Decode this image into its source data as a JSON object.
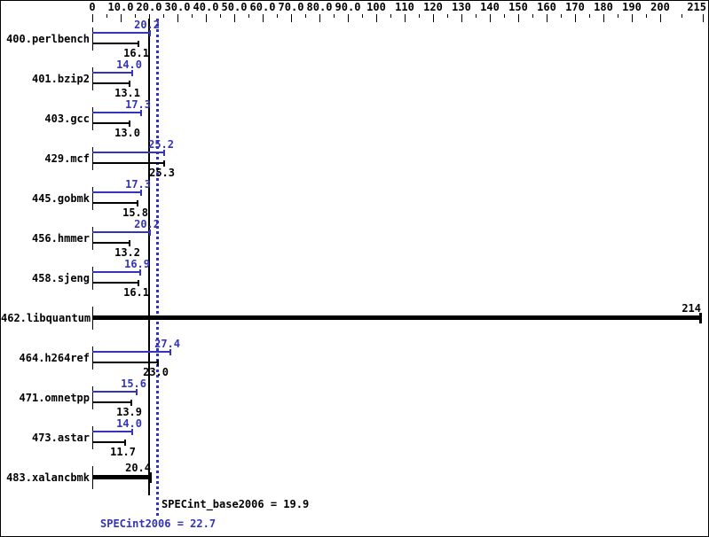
{
  "colors": {
    "peak_blue": "#3333bb",
    "base_black": "#000000",
    "background": "#ffffff"
  },
  "axis": {
    "labels": [
      {
        "value": 0,
        "text": "0"
      },
      {
        "value": 10,
        "text": "10.0"
      },
      {
        "value": 20,
        "text": "20.0"
      },
      {
        "value": 30,
        "text": "30.0"
      },
      {
        "value": 40,
        "text": "40.0"
      },
      {
        "value": 50,
        "text": "50.0"
      },
      {
        "value": 60,
        "text": "60.0"
      },
      {
        "value": 70,
        "text": "70.0"
      },
      {
        "value": 80,
        "text": "80.0"
      },
      {
        "value": 90,
        "text": "90.0"
      },
      {
        "value": 100,
        "text": "100"
      },
      {
        "value": 110,
        "text": "110"
      },
      {
        "value": 120,
        "text": "120"
      },
      {
        "value": 130,
        "text": "130"
      },
      {
        "value": 140,
        "text": "140"
      },
      {
        "value": 150,
        "text": "150"
      },
      {
        "value": 160,
        "text": "160"
      },
      {
        "value": 170,
        "text": "170"
      },
      {
        "value": 180,
        "text": "180"
      },
      {
        "value": 190,
        "text": "190"
      },
      {
        "value": 200,
        "text": "200"
      },
      {
        "value": 215,
        "text": "215",
        "align": "right"
      }
    ],
    "minor_values": [
      5,
      15,
      25,
      35,
      45,
      55,
      65,
      75,
      85,
      95,
      105,
      115,
      125,
      135,
      145,
      155,
      165,
      175,
      185,
      195,
      207.5
    ]
  },
  "chart_data": {
    "type": "bar",
    "orientation": "horizontal",
    "title": "",
    "xlabel": "",
    "ylabel": "",
    "xlim": [
      0,
      215
    ],
    "legend": "none",
    "series_meaning": [
      {
        "name": "SPECint2006 (peak)",
        "color": "#3333bb"
      },
      {
        "name": "SPECint_base2006 (base)",
        "color": "#000000"
      }
    ],
    "rows": [
      {
        "name": "400.perlbench",
        "peak": 20.2,
        "peak_text": "20.2",
        "base": 16.1,
        "base_text": "16.1"
      },
      {
        "name": "401.bzip2",
        "peak": 14.0,
        "peak_text": "14.0",
        "base": 13.1,
        "base_text": "13.1"
      },
      {
        "name": "403.gcc",
        "peak": 17.3,
        "peak_text": "17.3",
        "base": 13.0,
        "base_text": "13.0"
      },
      {
        "name": "429.mcf",
        "peak": 25.2,
        "peak_text": "25.2",
        "base": 25.3,
        "base_text": "25.3"
      },
      {
        "name": "445.gobmk",
        "peak": 17.3,
        "peak_text": "17.3",
        "base": 15.8,
        "base_text": "15.8"
      },
      {
        "name": "456.hmmer",
        "peak": 20.2,
        "peak_text": "20.2",
        "base": 13.2,
        "base_text": "13.2"
      },
      {
        "name": "458.sjeng",
        "peak": 16.9,
        "peak_text": "16.9",
        "base": 16.1,
        "base_text": "16.1"
      },
      {
        "name": "462.libquantum",
        "single": 214,
        "single_text": "214"
      },
      {
        "name": "464.h264ref",
        "peak": 27.4,
        "peak_text": "27.4",
        "base": 23.0,
        "base_text": "23.0"
      },
      {
        "name": "471.omnetpp",
        "peak": 15.6,
        "peak_text": "15.6",
        "base": 13.9,
        "base_text": "13.9"
      },
      {
        "name": "473.astar",
        "peak": 14.0,
        "peak_text": "14.0",
        "base": 11.7,
        "base_text": "11.7"
      },
      {
        "name": "483.xalancbmk",
        "single": 20.4,
        "single_text": "20.4"
      }
    ],
    "means": {
      "base_value": 19.9,
      "base_label": "SPECint_base2006 = 19.9",
      "peak_value": 22.7,
      "peak_label": "SPECint2006 = 22.7"
    }
  }
}
